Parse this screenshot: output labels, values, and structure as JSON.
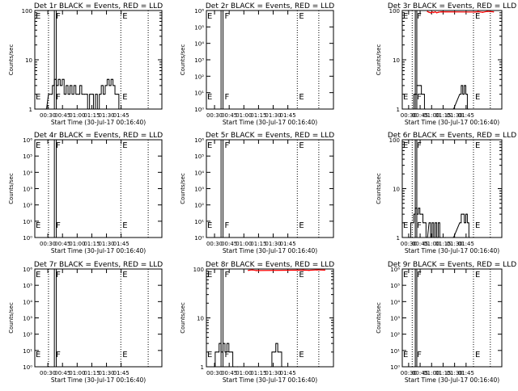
{
  "window": {
    "background": "#ffffff"
  },
  "colors": {
    "events": "#000000",
    "lld": "#ff0000",
    "axis": "#000000"
  },
  "x_axis_shared": {
    "label": "Start Time (30-Jul-17 00:16:40)",
    "ticks_full": [
      "00:30",
      "00:45",
      "01:00",
      "01:15",
      "01:30",
      "01:45"
    ],
    "ticks_first": [
      "00:30",
      "00:45",
      "01:00",
      "01:15",
      "01:30",
      "01:45"
    ]
  },
  "y_label": "Counts/sec",
  "chart_data": [
    {
      "title": "Det 1r BLACK = Events, RED = LLD",
      "type": "line",
      "yscale": "log",
      "ylim": [
        1,
        100
      ],
      "yticks": [
        "1",
        "10",
        "100"
      ],
      "xticks": [
        "00:30",
        "00:45",
        "01:00",
        "01:15",
        "01:30",
        "01:45"
      ],
      "xlabel": "Start Time (30-Jul-17 00:16:40)",
      "ylabel": "Counts/sec",
      "xrange_min": [
        0,
        130
      ],
      "markers": [
        {
          "t": 20,
          "label": "F"
        },
        {
          "t": 20,
          "label": ""
        },
        {
          "t": 22,
          "label": ""
        },
        {
          "t": 88,
          "label": "E"
        },
        {
          "t": 88,
          "label": ""
        },
        {
          "t": 116,
          "label": ""
        }
      ],
      "dotted": [
        14,
        88,
        116
      ],
      "solid": [
        20,
        22
      ],
      "events": [
        [
          10,
          1
        ],
        [
          14,
          2
        ],
        [
          16,
          2
        ],
        [
          18,
          3
        ],
        [
          20,
          4
        ],
        [
          22,
          3
        ],
        [
          24,
          4
        ],
        [
          26,
          3
        ],
        [
          28,
          4
        ],
        [
          30,
          2
        ],
        [
          32,
          3
        ],
        [
          34,
          2
        ],
        [
          36,
          3
        ],
        [
          38,
          2
        ],
        [
          40,
          3
        ],
        [
          42,
          2
        ],
        [
          44,
          2
        ],
        [
          46,
          3
        ],
        [
          48,
          2
        ],
        [
          50,
          2
        ],
        [
          52,
          2
        ],
        [
          54,
          1
        ],
        [
          56,
          2
        ],
        [
          58,
          2
        ],
        [
          60,
          1
        ],
        [
          62,
          2
        ],
        [
          64,
          1
        ],
        [
          66,
          2
        ],
        [
          68,
          3
        ],
        [
          70,
          2
        ],
        [
          72,
          3
        ],
        [
          74,
          4
        ],
        [
          76,
          3
        ],
        [
          78,
          4
        ],
        [
          80,
          3
        ],
        [
          82,
          2
        ],
        [
          84,
          2
        ],
        [
          86,
          1
        ]
      ],
      "lld": []
    },
    {
      "title": "Det 2r BLACK = Events, RED = LLD",
      "type": "line",
      "yscale": "log",
      "ylim": [
        1,
        1000000
      ],
      "yticks": [
        "10⁰",
        "10¹",
        "10²",
        "10³",
        "10⁴",
        "10⁵",
        "10⁶"
      ],
      "xticks": [
        "00:30",
        "00:45",
        "01:00",
        "01:15",
        "01:30",
        "01:45"
      ],
      "xlabel": "Start Time (30-Jul-17 00:16:40)",
      "ylabel": "Counts/sec",
      "xrange_min": [
        5,
        135
      ],
      "markers": [
        {
          "t": 22,
          "label": "F"
        },
        {
          "t": 98,
          "label": "E"
        }
      ],
      "dotted": [
        98,
        120
      ],
      "solid": [
        20,
        22
      ],
      "events": [],
      "lld": []
    },
    {
      "title": "Det 3r BLACK = Events, RED = LLD",
      "type": "line",
      "yscale": "log",
      "ylim": [
        1,
        100
      ],
      "yticks": [
        "1",
        "10",
        "100"
      ],
      "xticks": [
        "00:30",
        "00:45",
        "01:00",
        "01:15",
        "01:30",
        "01:45"
      ],
      "xlabel": "Start Time (30-Jul-17 00:16:40)",
      "ylabel": "Counts/sec",
      "xrange_min": [
        5,
        135
      ],
      "markers": [
        {
          "t": 22,
          "label": "F"
        },
        {
          "t": 98,
          "label": "E"
        }
      ],
      "dotted": [
        18,
        98,
        120
      ],
      "solid": [
        22,
        24
      ],
      "events": [
        [
          18,
          1
        ],
        [
          20,
          2
        ],
        [
          22,
          2
        ],
        [
          24,
          3
        ],
        [
          26,
          3
        ],
        [
          28,
          3
        ],
        [
          30,
          2
        ],
        [
          32,
          2
        ],
        [
          34,
          1
        ],
        [
          60,
          1
        ],
        [
          70,
          1
        ],
        [
          80,
          2
        ],
        [
          82,
          3
        ],
        [
          84,
          2
        ],
        [
          86,
          3
        ],
        [
          88,
          2
        ],
        [
          90,
          1
        ]
      ],
      "lld": [
        [
          38,
          95
        ],
        [
          40,
          92
        ],
        [
          42,
          90
        ],
        [
          44,
          93
        ],
        [
          46,
          91
        ],
        [
          48,
          94
        ],
        [
          50,
          90
        ],
        [
          52,
          92
        ],
        [
          56,
          94
        ],
        [
          100,
          93
        ],
        [
          104,
          95
        ],
        [
          110,
          92
        ],
        [
          116,
          96
        ],
        [
          124,
          94
        ]
      ]
    },
    {
      "title": "Det 4r BLACK = Events, RED = LLD",
      "type": "line",
      "yscale": "log",
      "ylim": [
        1,
        1000000
      ],
      "yticks": [
        "10⁰",
        "10¹",
        "10²",
        "10³",
        "10⁴",
        "10⁵",
        "10⁶"
      ],
      "xticks": [
        "00:30",
        "00:45",
        "01:00",
        "01:15",
        "01:30",
        "01:45"
      ],
      "xlabel": "Start Time (30-Jul-17 00:16:40)",
      "ylabel": "Counts/sec",
      "xrange_min": [
        0,
        130
      ],
      "markers": [
        {
          "t": 20,
          "label": "F"
        },
        {
          "t": 88,
          "label": "E"
        }
      ],
      "dotted": [
        14,
        88,
        116
      ],
      "solid": [
        20,
        22
      ],
      "events": [],
      "lld": []
    },
    {
      "title": "Det 5r BLACK = Events, RED = LLD",
      "type": "line",
      "yscale": "log",
      "ylim": [
        1,
        1000000
      ],
      "yticks": [
        "10⁰",
        "10¹",
        "10²",
        "10³",
        "10⁴",
        "10⁵",
        "10⁶"
      ],
      "xticks": [
        "00:30",
        "00:45",
        "01:00",
        "01:15",
        "01:30",
        "01:45"
      ],
      "xlabel": "Start Time (30-Jul-17 00:16:40)",
      "ylabel": "Counts/sec",
      "xrange_min": [
        5,
        135
      ],
      "markers": [
        {
          "t": 22,
          "label": "F"
        },
        {
          "t": 98,
          "label": "E"
        }
      ],
      "dotted": [
        98,
        120
      ],
      "solid": [
        20,
        22
      ],
      "events": [],
      "lld": []
    },
    {
      "title": "Det 6r BLACK = Events, RED = LLD",
      "type": "line",
      "yscale": "log",
      "ylim": [
        1,
        100
      ],
      "yticks": [
        "1",
        "10",
        "100"
      ],
      "xticks": [
        "00:30",
        "00:45",
        "01:00",
        "01:15",
        "01:30",
        "01:45"
      ],
      "xlabel": "Start Time (30-Jul-17 00:16:40)",
      "ylabel": "Counts/sec",
      "xrange_min": [
        5,
        135
      ],
      "markers": [
        {
          "t": 22,
          "label": "F"
        },
        {
          "t": 98,
          "label": "E"
        }
      ],
      "dotted": [
        18,
        98,
        120
      ],
      "solid": [
        22,
        24
      ],
      "events": [
        [
          14,
          1
        ],
        [
          16,
          2
        ],
        [
          18,
          2
        ],
        [
          20,
          3
        ],
        [
          22,
          4
        ],
        [
          24,
          3
        ],
        [
          26,
          4
        ],
        [
          28,
          3
        ],
        [
          30,
          3
        ],
        [
          32,
          2
        ],
        [
          34,
          2
        ],
        [
          36,
          1
        ],
        [
          40,
          2
        ],
        [
          42,
          1
        ],
        [
          44,
          2
        ],
        [
          46,
          1
        ],
        [
          48,
          2
        ],
        [
          50,
          1
        ],
        [
          52,
          2
        ],
        [
          54,
          1
        ],
        [
          60,
          1
        ],
        [
          70,
          1
        ],
        [
          80,
          2
        ],
        [
          82,
          3
        ],
        [
          84,
          3
        ],
        [
          86,
          2
        ],
        [
          88,
          3
        ],
        [
          90,
          2
        ],
        [
          92,
          1
        ]
      ],
      "lld": []
    },
    {
      "title": "Det 7r BLACK = Events, RED = LLD",
      "type": "line",
      "yscale": "log",
      "ylim": [
        1,
        1000000
      ],
      "yticks": [
        "10⁰",
        "10¹",
        "10²",
        "10³",
        "10⁴",
        "10⁵",
        "10⁶"
      ],
      "xticks": [
        "00:30",
        "00:45",
        "01:00",
        "01:15",
        "01:30",
        "01:45"
      ],
      "xlabel": "Start Time (30-Jul-17 00:16:40)",
      "ylabel": "Counts/sec",
      "xrange_min": [
        0,
        130
      ],
      "markers": [
        {
          "t": 20,
          "label": "F"
        },
        {
          "t": 88,
          "label": "E"
        }
      ],
      "dotted": [
        14,
        88,
        116
      ],
      "solid": [
        20,
        22
      ],
      "events": [],
      "lld": []
    },
    {
      "title": "Det 8r BLACK = Events, RED = LLD",
      "type": "line",
      "yscale": "log",
      "ylim": [
        1,
        100
      ],
      "yticks": [
        "1",
        "10",
        "100"
      ],
      "xticks": [
        "00:30",
        "00:45",
        "01:00",
        "01:15",
        "01:30",
        "01:45"
      ],
      "xlabel": "Start Time (30-Jul-17 00:16:40)",
      "ylabel": "Counts/sec",
      "xrange_min": [
        5,
        135
      ],
      "markers": [
        {
          "t": 22,
          "label": "F"
        },
        {
          "t": 98,
          "label": "E"
        }
      ],
      "dotted": [
        98,
        120
      ],
      "solid": [
        20,
        22
      ],
      "events": [
        [
          12,
          1
        ],
        [
          14,
          2
        ],
        [
          16,
          2
        ],
        [
          18,
          3
        ],
        [
          20,
          2
        ],
        [
          22,
          3
        ],
        [
          24,
          2
        ],
        [
          26,
          3
        ],
        [
          28,
          2
        ],
        [
          30,
          2
        ],
        [
          32,
          1
        ],
        [
          36,
          1
        ],
        [
          70,
          1
        ],
        [
          72,
          2
        ],
        [
          74,
          2
        ],
        [
          76,
          3
        ],
        [
          78,
          2
        ],
        [
          80,
          2
        ],
        [
          82,
          1
        ]
      ],
      "lld": [
        [
          48,
          94
        ],
        [
          52,
          96
        ],
        [
          56,
          93
        ],
        [
          104,
          95
        ],
        [
          110,
          94
        ],
        [
          118,
          96
        ],
        [
          126,
          95
        ]
      ]
    },
    {
      "title": "Det 9r BLACK = Events, RED = LLD",
      "type": "line",
      "yscale": "log",
      "ylim": [
        1,
        1000000
      ],
      "yticks": [
        "10⁰",
        "10¹",
        "10²",
        "10³",
        "10⁴",
        "10⁵",
        "10⁶"
      ],
      "xticks": [
        "00:30",
        "00:45",
        "01:00",
        "01:15",
        "01:30",
        "01:45"
      ],
      "xlabel": "Start Time (30-Jul-17 00:16:40)",
      "ylabel": "Counts/sec",
      "xrange_min": [
        5,
        135
      ],
      "markers": [
        {
          "t": 22,
          "label": "F"
        },
        {
          "t": 98,
          "label": "E"
        }
      ],
      "dotted": [
        18,
        98,
        120
      ],
      "solid": [
        22,
        24
      ],
      "events": [],
      "lld": []
    }
  ]
}
